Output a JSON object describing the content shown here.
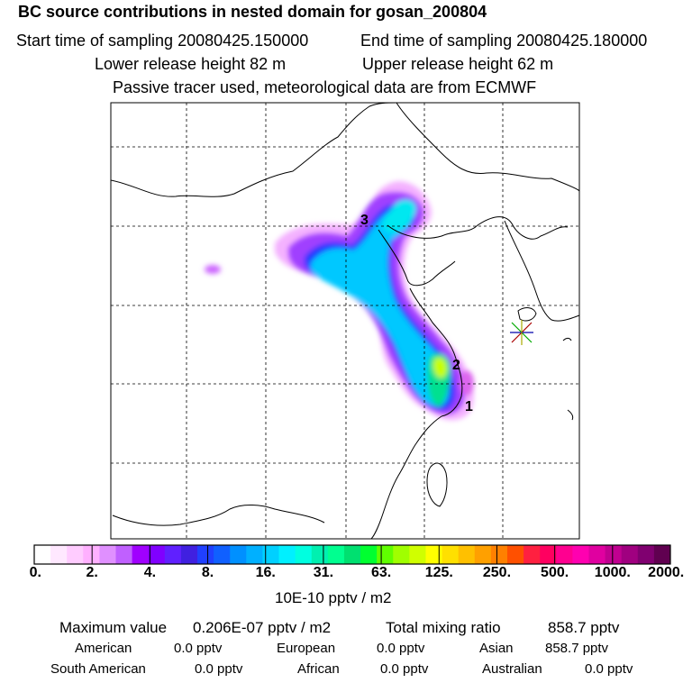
{
  "header": {
    "title": "BC  source contributions in nested domain for gosan_200804",
    "start_label": "Start time of sampling 20080425.150000",
    "end_label": "End time of sampling 20080425.180000",
    "lower_label": "Lower release height   82 m",
    "upper_label": "Upper release height   62 m",
    "note": "Passive tracer used, meteorological data are from ECMWF"
  },
  "map": {
    "markers": [
      "1",
      "2",
      "3"
    ],
    "site_marker_icon": "star-burst-icon"
  },
  "colorbar": {
    "labels": [
      "0.",
      "2.",
      "4.",
      "8.",
      "16.",
      "31.",
      "63.",
      "125.",
      "250.",
      "500.",
      "1000.",
      "2000."
    ],
    "unit": "10E-10 pptv / m2",
    "colors": [
      "#ffffff",
      "#ffe8ff",
      "#ffccff",
      "#ffb0ff",
      "#e090ff",
      "#c060ff",
      "#a000ff",
      "#8000ff",
      "#6020ff",
      "#4020e0",
      "#2040ff",
      "#1060ff",
      "#0090ff",
      "#00b0ff",
      "#00d0ff",
      "#00f0ff",
      "#00ffe0",
      "#00f0b0",
      "#00ff90",
      "#00e070",
      "#00ff30",
      "#60ff00",
      "#a0ff00",
      "#d0ff00",
      "#ffff00",
      "#ffe000",
      "#ffc000",
      "#ffa000",
      "#ff8000",
      "#ff5000",
      "#ff2040",
      "#ff0060",
      "#ff0090",
      "#ff00b0",
      "#e000a0",
      "#c00090",
      "#a00080",
      "#800070",
      "#600050"
    ]
  },
  "stats": {
    "max_label": "Maximum value",
    "max_value": "0.206E-07 pptv / m2",
    "total_label": "Total mixing ratio",
    "total_value": "858.7 pptv",
    "rows": [
      {
        "name": "American",
        "value": "0.0 pptv"
      },
      {
        "name": "European",
        "value": "0.0 pptv"
      },
      {
        "name": "Asian",
        "value": "858.7 pptv"
      },
      {
        "name": "South American",
        "value": "0.0 pptv"
      },
      {
        "name": "African",
        "value": "0.0 pptv"
      },
      {
        "name": "Australian",
        "value": "0.0 pptv"
      }
    ]
  }
}
